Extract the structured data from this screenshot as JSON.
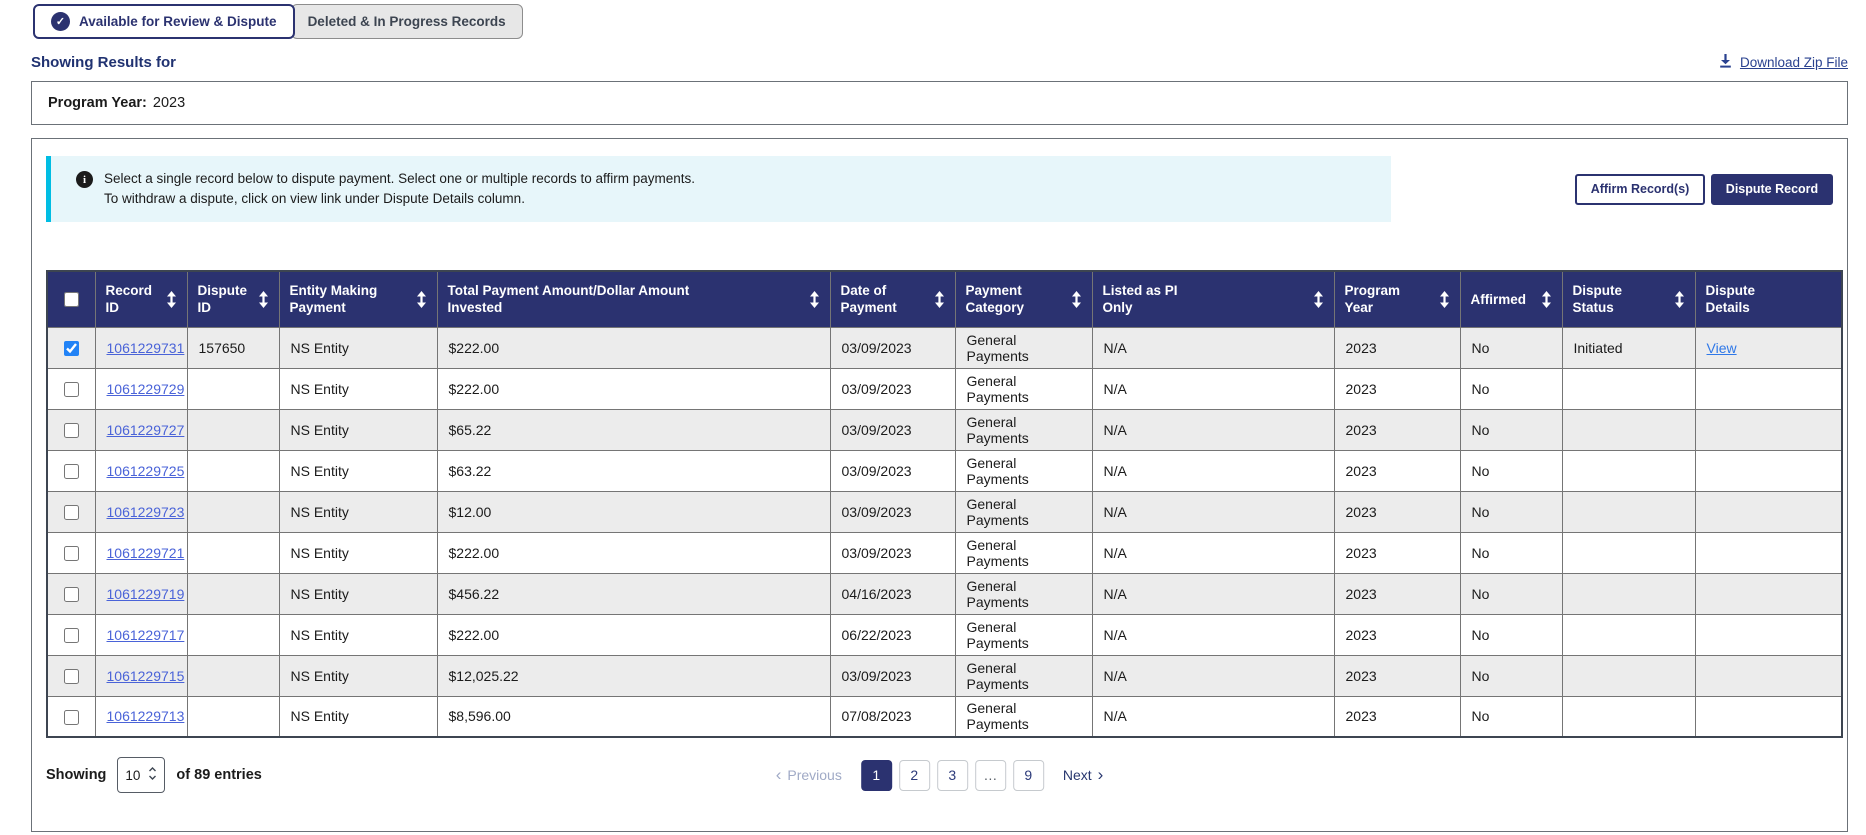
{
  "colors": {
    "navy": "#2b3270",
    "banner_bg": "#e7f6fa",
    "banner_accent": "#00bde3",
    "stripe": "#ececec",
    "record_link": "#4a63d8",
    "view_link": "#2f78e8",
    "checkbox_checked": "#2283f6"
  },
  "tabs": [
    {
      "label": "Available for Review & Dispute",
      "active": true,
      "icon": "check-circle-icon"
    },
    {
      "label": "Deleted & In Progress Records",
      "active": false
    }
  ],
  "header": {
    "showing_results": "Showing Results for",
    "download_zip": "Download Zip File",
    "download_icon": "download-icon"
  },
  "filter": {
    "program_year_label": "Program Year:",
    "program_year_value": "2023"
  },
  "banner": {
    "icon": "info-icon",
    "line1": "Select a single record below to dispute payment. Select one or multiple records to affirm payments.",
    "line2": "To withdraw a dispute, click on view link under Dispute Details column."
  },
  "actions": {
    "affirm_label": "Affirm Record(s)",
    "dispute_label": "Dispute Record"
  },
  "table": {
    "columns": [
      {
        "id": "select",
        "label": "",
        "sortable": false
      },
      {
        "id": "record_id",
        "label": "Record ID",
        "sortable": true
      },
      {
        "id": "dispute_id",
        "label": "Dispute ID",
        "sortable": true
      },
      {
        "id": "entity",
        "label": "Entity Making Payment",
        "sortable": true
      },
      {
        "id": "amount",
        "label": "Total Payment Amount/Dollar Amount Invested",
        "sortable": true
      },
      {
        "id": "date",
        "label": "Date of Payment",
        "sortable": true
      },
      {
        "id": "category",
        "label": "Payment Category",
        "sortable": true
      },
      {
        "id": "pi_only",
        "label": "Listed as PI Only",
        "sortable": true
      },
      {
        "id": "year",
        "label": "Program Year",
        "sortable": true
      },
      {
        "id": "affirmed",
        "label": "Affirmed",
        "sortable": true
      },
      {
        "id": "status",
        "label": "Dispute Status",
        "sortable": true
      },
      {
        "id": "details",
        "label": "Dispute Details",
        "sortable": false
      }
    ],
    "rows": [
      {
        "checked": true,
        "record_id": "1061229731",
        "dispute_id": "157650",
        "entity": "NS Entity",
        "amount": "$222.00",
        "date": "03/09/2023",
        "category": "General Payments",
        "pi_only": "N/A",
        "year": "2023",
        "affirmed": "No",
        "status": "Initiated",
        "details": "View"
      },
      {
        "checked": false,
        "record_id": "1061229729",
        "dispute_id": "",
        "entity": "NS Entity",
        "amount": "$222.00",
        "date": "03/09/2023",
        "category": "General Payments",
        "pi_only": "N/A",
        "year": "2023",
        "affirmed": "No",
        "status": "",
        "details": ""
      },
      {
        "checked": false,
        "record_id": "1061229727",
        "dispute_id": "",
        "entity": "NS Entity",
        "amount": "$65.22",
        "date": "03/09/2023",
        "category": "General Payments",
        "pi_only": "N/A",
        "year": "2023",
        "affirmed": "No",
        "status": "",
        "details": ""
      },
      {
        "checked": false,
        "record_id": "1061229725",
        "dispute_id": "",
        "entity": "NS Entity",
        "amount": "$63.22",
        "date": "03/09/2023",
        "category": "General Payments",
        "pi_only": "N/A",
        "year": "2023",
        "affirmed": "No",
        "status": "",
        "details": ""
      },
      {
        "checked": false,
        "record_id": "1061229723",
        "dispute_id": "",
        "entity": "NS Entity",
        "amount": "$12.00",
        "date": "03/09/2023",
        "category": "General Payments",
        "pi_only": "N/A",
        "year": "2023",
        "affirmed": "No",
        "status": "",
        "details": ""
      },
      {
        "checked": false,
        "record_id": "1061229721",
        "dispute_id": "",
        "entity": "NS Entity",
        "amount": "$222.00",
        "date": "03/09/2023",
        "category": "General Payments",
        "pi_only": "N/A",
        "year": "2023",
        "affirmed": "No",
        "status": "",
        "details": ""
      },
      {
        "checked": false,
        "record_id": "1061229719",
        "dispute_id": "",
        "entity": "NS Entity",
        "amount": "$456.22",
        "date": "04/16/2023",
        "category": "General Payments",
        "pi_only": "N/A",
        "year": "2023",
        "affirmed": "No",
        "status": "",
        "details": ""
      },
      {
        "checked": false,
        "record_id": "1061229717",
        "dispute_id": "",
        "entity": "NS Entity",
        "amount": "$222.00",
        "date": "06/22/2023",
        "category": "General Payments",
        "pi_only": "N/A",
        "year": "2023",
        "affirmed": "No",
        "status": "",
        "details": ""
      },
      {
        "checked": false,
        "record_id": "1061229715",
        "dispute_id": "",
        "entity": "NS Entity",
        "amount": "$12,025.22",
        "date": "03/09/2023",
        "category": "General Payments",
        "pi_only": "N/A",
        "year": "2023",
        "affirmed": "No",
        "status": "",
        "details": ""
      },
      {
        "checked": false,
        "record_id": "1061229713",
        "dispute_id": "",
        "entity": "NS Entity",
        "amount": "$8,596.00",
        "date": "07/08/2023",
        "category": "General Payments",
        "pi_only": "N/A",
        "year": "2023",
        "affirmed": "No",
        "status": "",
        "details": ""
      }
    ]
  },
  "footer": {
    "showing_label": "Showing",
    "page_size": "10",
    "entries_label": "of 89 entries",
    "pagination": {
      "icons": {
        "chevron_left": "‹",
        "chevron_right": "›"
      },
      "items": [
        {
          "type": "prev",
          "label": "Previous",
          "disabled": true
        },
        {
          "type": "page",
          "label": "1",
          "active": true
        },
        {
          "type": "page",
          "label": "2",
          "active": false
        },
        {
          "type": "page",
          "label": "3",
          "active": false
        },
        {
          "type": "ellipsis",
          "label": "…"
        },
        {
          "type": "page",
          "label": "9",
          "active": false
        },
        {
          "type": "next",
          "label": "Next",
          "disabled": false
        }
      ]
    }
  }
}
